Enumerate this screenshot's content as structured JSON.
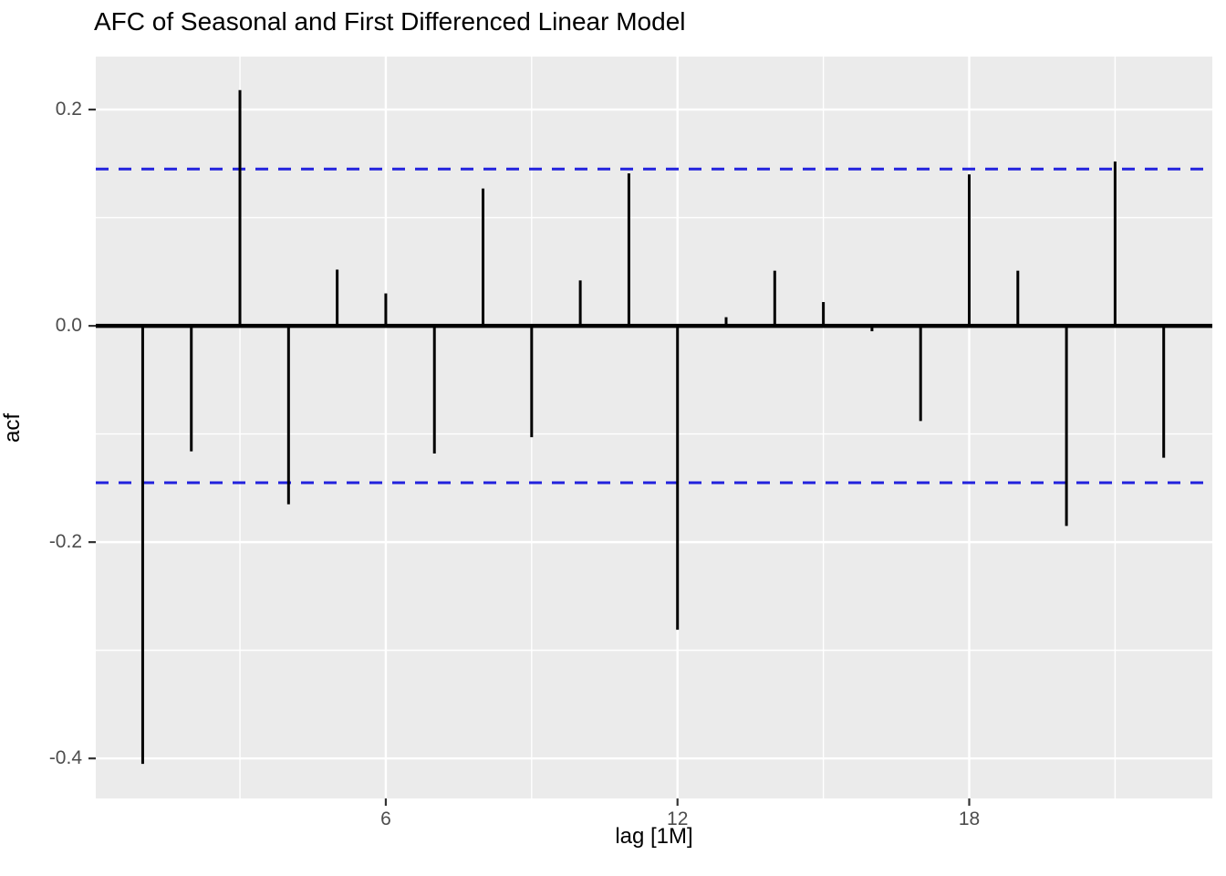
{
  "chart_data": {
    "type": "bar",
    "subtype": "acf-stem-plot",
    "title": "AFC of Seasonal and First Differenced Linear Model",
    "xlabel": "lag [1M]",
    "ylabel": "acf",
    "x": [
      1,
      2,
      3,
      4,
      5,
      6,
      7,
      8,
      9,
      10,
      11,
      12,
      13,
      14,
      15,
      16,
      17,
      18,
      19,
      20,
      21,
      22
    ],
    "values": [
      -0.405,
      -0.116,
      0.218,
      -0.165,
      0.052,
      0.03,
      -0.118,
      0.127,
      -0.103,
      0.042,
      0.141,
      -0.281,
      0.008,
      0.051,
      0.022,
      -0.005,
      -0.088,
      0.14,
      0.051,
      -0.185,
      0.152,
      -0.122
    ],
    "conf_interval": 0.145,
    "x_ticks": [
      {
        "value": 6,
        "label": "6"
      },
      {
        "value": 12,
        "label": "12"
      },
      {
        "value": 18,
        "label": "18"
      }
    ],
    "y_ticks": [
      {
        "value": 0.2,
        "label": "0.2"
      },
      {
        "value": 0.0,
        "label": "0.0"
      },
      {
        "value": -0.2,
        "label": "-0.2"
      },
      {
        "value": -0.4,
        "label": "-0.4"
      }
    ],
    "x_minor": [
      3,
      9,
      15,
      21
    ],
    "y_minor": [
      0.1,
      -0.1,
      -0.3
    ],
    "xlim": [
      0.035,
      23.0
    ],
    "ylim": [
      -0.437,
      0.249
    ],
    "grid": true,
    "legend": "none",
    "colors": {
      "panel_bg": "#EBEBEB",
      "grid": "#FFFFFF",
      "stem": "#000000",
      "zero_line": "#000000",
      "ci_line": "#2222DD",
      "tick": "#333333",
      "tick_label": "#4D4D4D",
      "title": "#000000"
    }
  }
}
